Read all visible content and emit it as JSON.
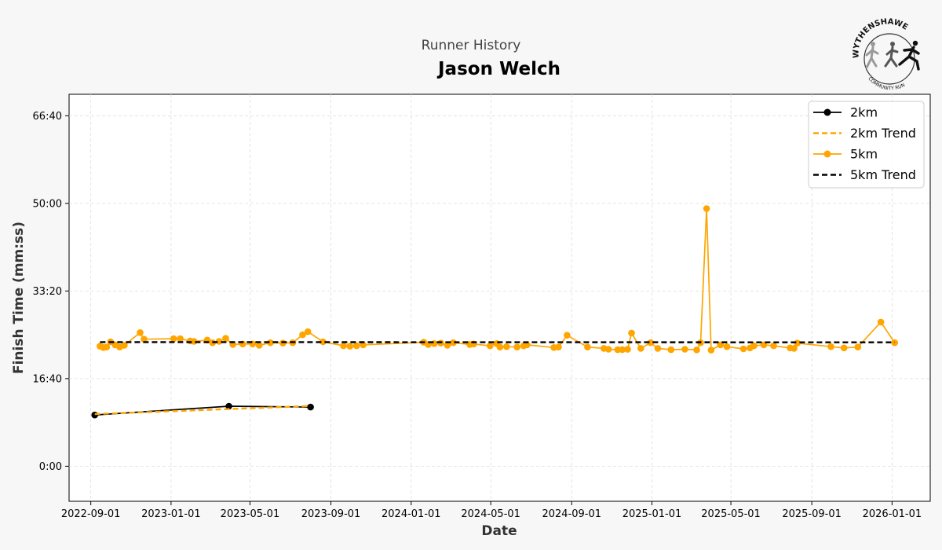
{
  "header": {
    "subtitle": "Runner History",
    "title": "Jason Welch"
  },
  "logo": {
    "text_top": "WYTHENSHAWE",
    "text_bottom": "COMMUNITY RUN"
  },
  "chart_data": {
    "type": "line",
    "xlabel": "Date",
    "ylabel": "Finish Time (mm:ss)",
    "x_range": [
      "2022-07-30",
      "2026-02-28"
    ],
    "y_range_seconds": [
      -400,
      4245
    ],
    "x_ticks": [
      "2022-09-01",
      "2023-01-01",
      "2023-05-01",
      "2023-09-01",
      "2024-01-01",
      "2024-05-01",
      "2024-09-01",
      "2025-01-01",
      "2025-05-01",
      "2025-09-01",
      "2026-01-01"
    ],
    "y_ticks": [
      {
        "seconds": 0,
        "label": "0:00"
      },
      {
        "seconds": 1000,
        "label": "16:40"
      },
      {
        "seconds": 2000,
        "label": "33:20"
      },
      {
        "seconds": 3000,
        "label": "50:00"
      },
      {
        "seconds": 4000,
        "label": "66:40"
      }
    ],
    "grid": true,
    "legend_position": "top-right",
    "colors": {
      "black": "#000000",
      "orange": "#ffa500"
    },
    "series": [
      {
        "name": "2km",
        "style": "solid-marker",
        "color": "#000000",
        "x": [
          "2022-09-07",
          "2023-03-30",
          "2023-08-01"
        ],
        "y_seconds": [
          585,
          685,
          675
        ]
      },
      {
        "name": "2km Trend",
        "style": "dashed",
        "color": "#ffa500",
        "x": [
          "2022-09-07",
          "2023-08-01"
        ],
        "y_seconds": [
          595,
          688
        ]
      },
      {
        "name": "5km",
        "style": "solid-marker",
        "color": "#ffa500",
        "x": [
          "2022-09-15",
          "2022-09-20",
          "2022-09-25",
          "2022-10-01",
          "2022-10-08",
          "2022-10-15",
          "2022-10-22",
          "2022-11-15",
          "2022-11-21",
          "2023-01-05",
          "2023-01-15",
          "2023-01-30",
          "2023-02-05",
          "2023-02-25",
          "2023-03-05",
          "2023-03-15",
          "2023-03-25",
          "2023-04-05",
          "2023-04-20",
          "2023-05-05",
          "2023-05-15",
          "2023-06-01",
          "2023-06-20",
          "2023-07-05",
          "2023-07-20",
          "2023-07-28",
          "2023-08-20",
          "2023-09-20",
          "2023-09-30",
          "2023-10-10",
          "2023-10-20",
          "2024-01-20",
          "2024-01-27",
          "2024-02-05",
          "2024-02-15",
          "2024-02-25",
          "2024-03-05",
          "2024-03-30",
          "2024-04-05",
          "2024-04-30",
          "2024-05-10",
          "2024-05-15",
          "2024-05-25",
          "2024-06-10",
          "2024-06-20",
          "2024-06-25",
          "2024-08-05",
          "2024-08-12",
          "2024-08-25",
          "2024-09-25",
          "2024-10-20",
          "2024-10-27",
          "2024-11-10",
          "2024-11-17",
          "2024-11-25",
          "2024-12-01",
          "2024-12-15",
          "2024-12-30",
          "2025-01-10",
          "2025-01-30",
          "2025-02-20",
          "2025-03-10",
          "2025-03-16",
          "2025-03-25",
          "2025-04-01",
          "2025-04-15",
          "2025-04-25",
          "2025-05-20",
          "2025-05-30",
          "2025-06-05",
          "2025-06-20",
          "2025-07-05",
          "2025-07-30",
          "2025-08-05",
          "2025-08-10",
          "2025-09-30",
          "2025-10-20",
          "2025-11-10",
          "2025-12-15",
          "2026-01-05"
        ],
        "y_seconds": [
          1370,
          1355,
          1360,
          1420,
          1385,
          1360,
          1380,
          1525,
          1450,
          1455,
          1455,
          1430,
          1425,
          1440,
          1410,
          1425,
          1460,
          1390,
          1395,
          1395,
          1380,
          1410,
          1405,
          1410,
          1500,
          1535,
          1420,
          1375,
          1370,
          1375,
          1385,
          1415,
          1390,
          1400,
          1405,
          1380,
          1410,
          1390,
          1395,
          1375,
          1400,
          1360,
          1365,
          1360,
          1375,
          1385,
          1355,
          1360,
          1495,
          1360,
          1345,
          1335,
          1330,
          1332,
          1334,
          1520,
          1345,
          1410,
          1345,
          1330,
          1335,
          1328,
          1410,
          2940,
          1325,
          1385,
          1365,
          1340,
          1350,
          1375,
          1385,
          1375,
          1350,
          1345,
          1405,
          1365,
          1350,
          1360,
          1645,
          1410
        ]
      },
      {
        "name": "5km Trend",
        "style": "dashed",
        "color": "#000000",
        "x": [
          "2022-09-15",
          "2026-01-05"
        ],
        "y_seconds": [
          1417,
          1414
        ]
      }
    ]
  }
}
